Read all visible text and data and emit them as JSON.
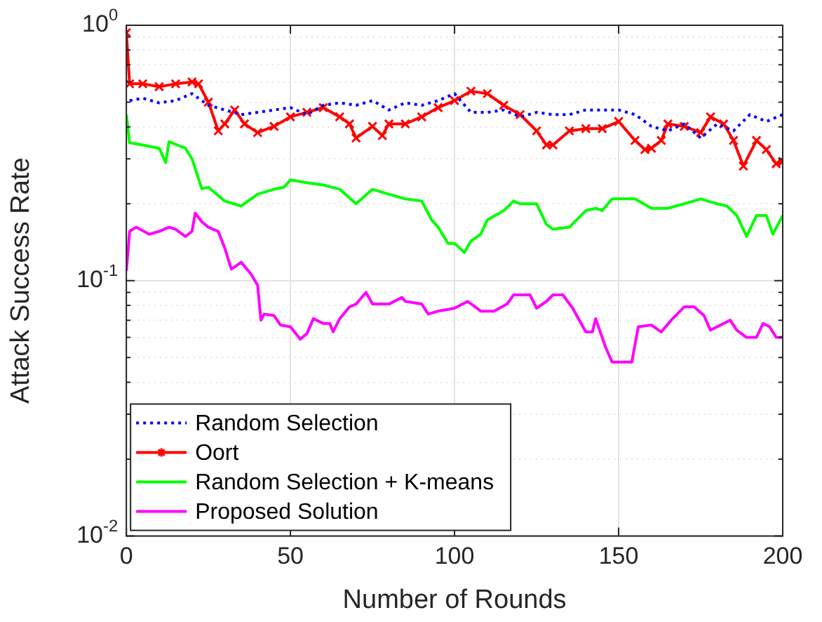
{
  "chart_data": {
    "type": "line",
    "xlabel": "Number of Rounds",
    "ylabel": "Attack Success Rate",
    "log": "y",
    "grid": true,
    "legend": "bottom left",
    "xlim": [
      0,
      200
    ],
    "xticks": [
      0,
      50,
      100,
      150,
      200
    ],
    "ylim": [
      0.01,
      1
    ],
    "yticks": [
      {
        "value": 0.01,
        "label": "10$^{-2}$"
      },
      {
        "value": 0.02,
        "label": null
      },
      {
        "value": 0.03,
        "label": null
      },
      {
        "value": 0.04,
        "label": null
      },
      {
        "value": 0.05,
        "label": null
      },
      {
        "value": 0.06,
        "label": null
      },
      {
        "value": 0.07,
        "label": null
      },
      {
        "value": 0.08,
        "label": null
      },
      {
        "value": 0.09,
        "label": null
      },
      {
        "value": 0.1,
        "label": "10$^{-1}$"
      },
      {
        "value": 0.2,
        "label": null
      },
      {
        "value": 0.3,
        "label": null
      },
      {
        "value": 0.4,
        "label": null
      },
      {
        "value": 0.5,
        "label": null
      },
      {
        "value": 0.6,
        "label": null
      },
      {
        "value": 0.7,
        "label": null
      },
      {
        "value": 0.8,
        "label": null
      },
      {
        "value": 0.9,
        "label": null
      },
      {
        "value": 1,
        "label": "10$^{0}$"
      }
    ],
    "series": [
      {
        "name": "Random Selection",
        "color": "#0000ff",
        "line_style": "dotted",
        "marker": "none",
        "x": [
          1,
          5,
          10,
          15,
          20,
          25,
          30,
          35,
          40,
          45,
          50,
          55,
          60,
          65,
          70,
          75,
          80,
          85,
          90,
          95,
          100,
          105,
          110,
          115,
          120,
          125,
          130,
          135,
          140,
          145,
          150,
          155,
          160,
          165,
          170,
          175,
          180,
          185,
          190,
          195,
          200
        ],
        "values": [
          0.507,
          0.518,
          0.497,
          0.507,
          0.54,
          0.486,
          0.466,
          0.447,
          0.456,
          0.466,
          0.476,
          0.447,
          0.486,
          0.497,
          0.486,
          0.507,
          0.466,
          0.497,
          0.486,
          0.507,
          0.54,
          0.456,
          0.456,
          0.466,
          0.438,
          0.456,
          0.447,
          0.447,
          0.466,
          0.466,
          0.466,
          0.447,
          0.402,
          0.386,
          0.411,
          0.362,
          0.411,
          0.386,
          0.447,
          0.42,
          0.447
        ]
      },
      {
        "name": "Oort",
        "color": "#ff0000",
        "line_style": "solid",
        "marker": "cross",
        "x": [
          0,
          1,
          5,
          10,
          15,
          20,
          22,
          25,
          28,
          30,
          33,
          36,
          40,
          45,
          50,
          55,
          60,
          65,
          68,
          70,
          75,
          78,
          80,
          85,
          90,
          95,
          100,
          105,
          110,
          115,
          120,
          125,
          128,
          130,
          135,
          140,
          145,
          150,
          155,
          158,
          160,
          163,
          165,
          170,
          175,
          178,
          182,
          185,
          188,
          192,
          195,
          198,
          200
        ],
        "values": [
          0.935,
          0.59,
          0.59,
          0.575,
          0.59,
          0.6,
          0.59,
          0.5,
          0.386,
          0.411,
          0.466,
          0.411,
          0.38,
          0.402,
          0.438,
          0.456,
          0.476,
          0.438,
          0.411,
          0.362,
          0.402,
          0.37,
          0.411,
          0.411,
          0.438,
          0.476,
          0.507,
          0.552,
          0.54,
          0.486,
          0.447,
          0.386,
          0.34,
          0.34,
          0.386,
          0.394,
          0.394,
          0.42,
          0.354,
          0.326,
          0.33,
          0.354,
          0.411,
          0.402,
          0.38,
          0.438,
          0.411,
          0.354,
          0.281,
          0.354,
          0.326,
          0.287,
          0.293
        ]
      },
      {
        "name": "Random Selection + K-means",
        "color": "#00ff00",
        "line_style": "solid",
        "marker": "none",
        "x": [
          0,
          1,
          5,
          10,
          12,
          13,
          18,
          20,
          23,
          25,
          30,
          35,
          38,
          40,
          45,
          48,
          50,
          55,
          60,
          65,
          70,
          75,
          80,
          85,
          90,
          93,
          95,
          98,
          100,
          103,
          105,
          108,
          110,
          115,
          118,
          120,
          125,
          128,
          130,
          135,
          140,
          143,
          145,
          148,
          150,
          155,
          160,
          165,
          170,
          175,
          180,
          183,
          186,
          189,
          192,
          195,
          197,
          200
        ],
        "values": [
          0.447,
          0.347,
          0.34,
          0.33,
          0.29,
          0.35,
          0.33,
          0.3,
          0.229,
          0.232,
          0.205,
          0.196,
          0.209,
          0.218,
          0.228,
          0.232,
          0.248,
          0.242,
          0.237,
          0.228,
          0.2,
          0.228,
          0.218,
          0.209,
          0.205,
          0.173,
          0.162,
          0.14,
          0.14,
          0.129,
          0.143,
          0.152,
          0.173,
          0.188,
          0.205,
          0.2,
          0.2,
          0.166,
          0.159,
          0.162,
          0.188,
          0.192,
          0.188,
          0.209,
          0.209,
          0.209,
          0.192,
          0.192,
          0.2,
          0.209,
          0.2,
          0.196,
          0.18,
          0.149,
          0.18,
          0.18,
          0.152,
          0.18
        ]
      },
      {
        "name": "Proposed Solution",
        "color": "#ff00ff",
        "line_style": "solid",
        "marker": "none",
        "x": [
          0,
          1,
          3,
          7,
          10,
          13,
          15,
          18,
          20,
          21,
          23,
          25,
          28,
          30,
          32,
          35,
          38,
          40,
          41,
          42,
          45,
          47,
          50,
          53,
          55,
          57,
          60,
          62,
          63,
          65,
          68,
          70,
          73,
          75,
          80,
          84,
          85,
          90,
          92,
          95,
          100,
          104,
          108,
          112,
          116,
          118,
          123,
          125,
          128,
          130,
          133,
          136,
          140,
          142,
          143,
          146,
          148,
          152,
          154,
          156,
          160,
          163,
          166,
          170,
          173,
          176,
          178,
          182,
          184,
          186,
          189,
          192,
          194,
          196,
          198,
          200
        ],
        "values": [
          0.109,
          0.156,
          0.162,
          0.152,
          0.156,
          0.162,
          0.159,
          0.149,
          0.156,
          0.184,
          0.17,
          0.162,
          0.156,
          0.134,
          0.111,
          0.118,
          0.106,
          0.096,
          0.07,
          0.074,
          0.073,
          0.067,
          0.066,
          0.059,
          0.062,
          0.071,
          0.068,
          0.068,
          0.063,
          0.071,
          0.079,
          0.081,
          0.09,
          0.081,
          0.081,
          0.086,
          0.083,
          0.081,
          0.074,
          0.076,
          0.078,
          0.083,
          0.076,
          0.076,
          0.081,
          0.088,
          0.088,
          0.078,
          0.083,
          0.088,
          0.088,
          0.078,
          0.063,
          0.063,
          0.071,
          0.055,
          0.048,
          0.048,
          0.048,
          0.066,
          0.067,
          0.063,
          0.07,
          0.079,
          0.079,
          0.073,
          0.064,
          0.068,
          0.07,
          0.064,
          0.06,
          0.06,
          0.068,
          0.066,
          0.06,
          0.06
        ]
      }
    ]
  }
}
